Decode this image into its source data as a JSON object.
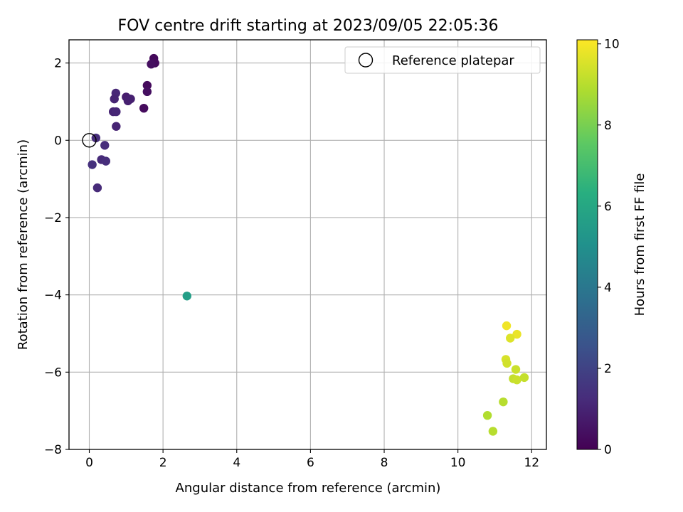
{
  "chart_data": {
    "type": "scatter",
    "title": "FOV centre drift starting at 2023/09/05 22:05:36",
    "xlabel": "Angular distance from reference (arcmin)",
    "ylabel": "Rotation from reference (arcmin)",
    "xlim": [
      -0.55,
      12.4
    ],
    "ylim": [
      -8.0,
      2.6
    ],
    "xticks": [
      0,
      2,
      4,
      6,
      8,
      10,
      12
    ],
    "yticks": [
      -8,
      -6,
      -4,
      -2,
      0,
      2
    ],
    "grid": true,
    "legend": {
      "position": "top-right",
      "entries": [
        {
          "label": "Reference platepar",
          "marker": "open-circle"
        }
      ]
    },
    "reference_point": {
      "x": 0,
      "y": 0
    },
    "colorbar": {
      "label": "Hours from first FF file",
      "min": 0,
      "max": 10.1,
      "ticks": [
        0,
        2,
        4,
        6,
        8,
        10
      ],
      "colormap": "viridis"
    },
    "points": [
      {
        "x": 1.75,
        "y": 2.12,
        "c": 0.2
      },
      {
        "x": 1.78,
        "y": 2.0,
        "c": 0.3
      },
      {
        "x": 1.68,
        "y": 1.97,
        "c": 0.4
      },
      {
        "x": 1.57,
        "y": 1.42,
        "c": 0.3
      },
      {
        "x": 1.57,
        "y": 1.26,
        "c": 0.4
      },
      {
        "x": 1.48,
        "y": 0.83,
        "c": 0.3
      },
      {
        "x": 0.72,
        "y": 1.22,
        "c": 1.1
      },
      {
        "x": 0.68,
        "y": 1.07,
        "c": 1.0
      },
      {
        "x": 1.0,
        "y": 1.12,
        "c": 0.8
      },
      {
        "x": 1.12,
        "y": 1.07,
        "c": 0.9
      },
      {
        "x": 1.05,
        "y": 1.02,
        "c": 0.9
      },
      {
        "x": 0.65,
        "y": 0.74,
        "c": 1.0
      },
      {
        "x": 0.73,
        "y": 0.74,
        "c": 1.1
      },
      {
        "x": 0.73,
        "y": 0.36,
        "c": 1.0
      },
      {
        "x": 0.18,
        "y": 0.06,
        "c": 1.3
      },
      {
        "x": 0.42,
        "y": -0.13,
        "c": 1.3
      },
      {
        "x": 0.33,
        "y": -0.5,
        "c": 1.2
      },
      {
        "x": 0.45,
        "y": -0.54,
        "c": 1.3
      },
      {
        "x": 0.08,
        "y": -0.63,
        "c": 1.4
      },
      {
        "x": 0.22,
        "y": -1.23,
        "c": 1.2
      },
      {
        "x": 2.65,
        "y": -4.03,
        "c": 5.6
      },
      {
        "x": 11.32,
        "y": -4.8,
        "c": 9.9
      },
      {
        "x": 11.6,
        "y": -5.02,
        "c": 9.8
      },
      {
        "x": 11.42,
        "y": -5.12,
        "c": 9.6
      },
      {
        "x": 11.3,
        "y": -5.67,
        "c": 9.5
      },
      {
        "x": 11.33,
        "y": -5.77,
        "c": 9.4
      },
      {
        "x": 11.57,
        "y": -5.93,
        "c": 9.3
      },
      {
        "x": 11.5,
        "y": -6.17,
        "c": 9.2
      },
      {
        "x": 11.6,
        "y": -6.2,
        "c": 9.3
      },
      {
        "x": 11.8,
        "y": -6.14,
        "c": 9.2
      },
      {
        "x": 11.23,
        "y": -6.77,
        "c": 9.0
      },
      {
        "x": 10.8,
        "y": -7.12,
        "c": 8.9
      },
      {
        "x": 10.95,
        "y": -7.53,
        "c": 9.0
      }
    ]
  }
}
